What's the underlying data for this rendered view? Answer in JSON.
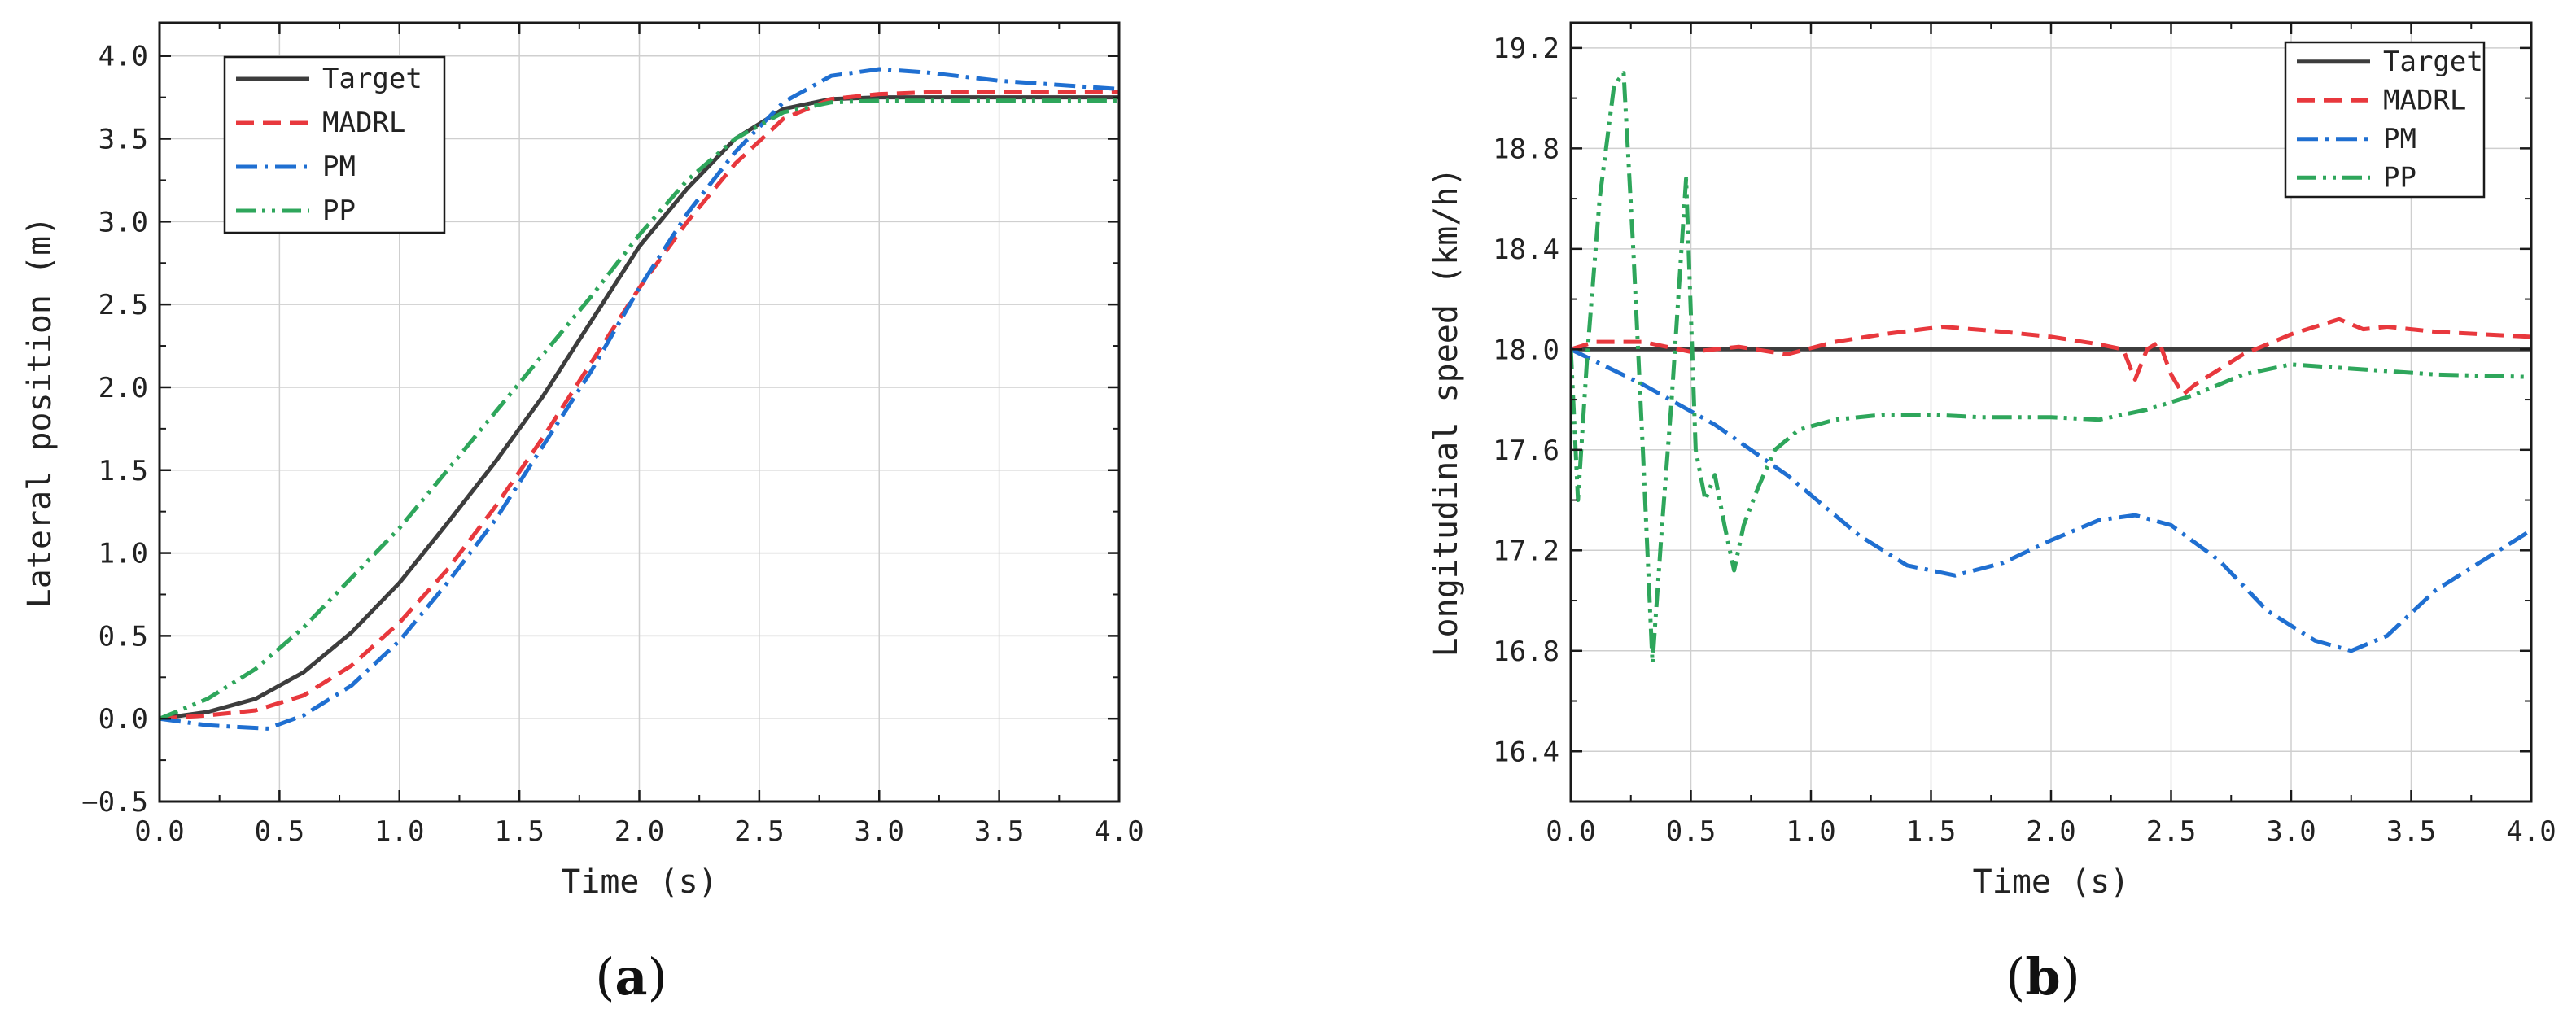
{
  "chart_data": [
    {
      "type": "line",
      "panel_label": "(a)",
      "panel_letter": "a",
      "xlabel": "Time (s)",
      "ylabel": "Lateral position (m)",
      "xlim": [
        0,
        4
      ],
      "ylim": [
        -0.5,
        4.2
      ],
      "xticks": [
        0.0,
        0.5,
        1.0,
        1.5,
        2.0,
        2.5,
        3.0,
        3.5,
        4.0
      ],
      "xtick_labels": [
        "0.0",
        "0.5",
        "1.0",
        "1.5",
        "2.0",
        "2.5",
        "3.0",
        "3.5",
        "4.0"
      ],
      "yticks": [
        -0.5,
        0.0,
        0.5,
        1.0,
        1.5,
        2.0,
        2.5,
        3.0,
        3.5,
        4.0
      ],
      "ytick_labels": [
        "−0.5",
        "0.0",
        "0.5",
        "1.0",
        "1.5",
        "2.0",
        "2.5",
        "3.0",
        "3.5",
        "4.0"
      ],
      "grid": true,
      "legend_position": "top-left",
      "series": [
        {
          "name": "Target",
          "color": "#3d3d3d",
          "style": "solid",
          "x": [
            0,
            0.2,
            0.4,
            0.6,
            0.8,
            1.0,
            1.2,
            1.4,
            1.6,
            1.8,
            2.0,
            2.2,
            2.4,
            2.6,
            2.8,
            3.0,
            3.2,
            3.5,
            4.0
          ],
          "y": [
            0,
            0.04,
            0.12,
            0.28,
            0.52,
            0.82,
            1.18,
            1.55,
            1.95,
            2.4,
            2.85,
            3.2,
            3.5,
            3.68,
            3.74,
            3.75,
            3.75,
            3.75,
            3.75
          ]
        },
        {
          "name": "MADRL",
          "color": "#e8383d",
          "style": "dashed",
          "x": [
            0,
            0.2,
            0.4,
            0.6,
            0.8,
            1.0,
            1.2,
            1.4,
            1.6,
            1.8,
            2.0,
            2.2,
            2.4,
            2.6,
            2.8,
            3.0,
            3.2,
            3.5,
            4.0
          ],
          "y": [
            0,
            0.02,
            0.05,
            0.14,
            0.32,
            0.58,
            0.9,
            1.28,
            1.7,
            2.15,
            2.6,
            3.0,
            3.35,
            3.62,
            3.74,
            3.77,
            3.78,
            3.78,
            3.78
          ]
        },
        {
          "name": "PM",
          "color": "#1f6fd1",
          "style": "dashdot",
          "x": [
            0,
            0.2,
            0.45,
            0.6,
            0.8,
            1.0,
            1.2,
            1.4,
            1.6,
            1.8,
            2.0,
            2.2,
            2.4,
            2.6,
            2.8,
            3.0,
            3.2,
            3.5,
            4.0
          ],
          "y": [
            0,
            -0.04,
            -0.06,
            0.02,
            0.2,
            0.47,
            0.82,
            1.2,
            1.65,
            2.1,
            2.6,
            3.05,
            3.42,
            3.72,
            3.88,
            3.92,
            3.9,
            3.85,
            3.8
          ]
        },
        {
          "name": "PP",
          "color": "#2ea65b",
          "style": "dashdotdot",
          "x": [
            0,
            0.2,
            0.4,
            0.6,
            0.8,
            1.0,
            1.2,
            1.4,
            1.6,
            1.8,
            2.0,
            2.2,
            2.4,
            2.6,
            2.8,
            3.0,
            3.2,
            3.5,
            4.0
          ],
          "y": [
            0,
            0.12,
            0.3,
            0.55,
            0.85,
            1.15,
            1.5,
            1.85,
            2.2,
            2.55,
            2.92,
            3.25,
            3.5,
            3.66,
            3.72,
            3.73,
            3.73,
            3.73,
            3.73
          ]
        }
      ]
    },
    {
      "type": "line",
      "panel_label": "(b)",
      "panel_letter": "b",
      "xlabel": "Time (s)",
      "ylabel": "Longitudinal speed (km/h)",
      "xlim": [
        0,
        4
      ],
      "ylim": [
        16.2,
        19.3
      ],
      "xticks": [
        0.0,
        0.5,
        1.0,
        1.5,
        2.0,
        2.5,
        3.0,
        3.5,
        4.0
      ],
      "xtick_labels": [
        "0.0",
        "0.5",
        "1.0",
        "1.5",
        "2.0",
        "2.5",
        "3.0",
        "3.5",
        "4.0"
      ],
      "yticks": [
        16.4,
        16.8,
        17.2,
        17.6,
        18.0,
        18.4,
        18.8,
        19.2
      ],
      "ytick_labels": [
        "16.4",
        "16.8",
        "17.2",
        "17.6",
        "18.0",
        "18.4",
        "18.8",
        "19.2"
      ],
      "grid": true,
      "legend_position": "top-right",
      "series": [
        {
          "name": "Target",
          "color": "#3d3d3d",
          "style": "solid",
          "x": [
            0,
            4
          ],
          "y": [
            18.0,
            18.0
          ]
        },
        {
          "name": "MADRL",
          "color": "#e8383d",
          "style": "dashed",
          "x": [
            0,
            0.1,
            0.3,
            0.5,
            0.7,
            0.9,
            1.1,
            1.3,
            1.55,
            1.8,
            2.0,
            2.2,
            2.3,
            2.35,
            2.4,
            2.45,
            2.5,
            2.55,
            2.6,
            2.8,
            3.0,
            3.2,
            3.3,
            3.4,
            3.6,
            4.0
          ],
          "y": [
            18.0,
            18.03,
            18.03,
            17.99,
            18.01,
            17.98,
            18.03,
            18.06,
            18.09,
            18.07,
            18.05,
            18.02,
            18.0,
            17.88,
            18.0,
            18.03,
            17.9,
            17.82,
            17.86,
            17.98,
            18.06,
            18.12,
            18.08,
            18.09,
            18.07,
            18.05
          ]
        },
        {
          "name": "PM",
          "color": "#1f6fd1",
          "style": "dashdot",
          "x": [
            0,
            0.3,
            0.6,
            0.9,
            1.2,
            1.4,
            1.6,
            1.8,
            2.0,
            2.2,
            2.35,
            2.5,
            2.7,
            2.9,
            3.1,
            3.25,
            3.4,
            3.6,
            3.8,
            4.0
          ],
          "y": [
            18.0,
            17.86,
            17.7,
            17.5,
            17.26,
            17.14,
            17.1,
            17.15,
            17.24,
            17.32,
            17.34,
            17.3,
            17.16,
            16.96,
            16.84,
            16.8,
            16.86,
            17.04,
            17.16,
            17.28
          ]
        },
        {
          "name": "PP",
          "color": "#2ea65b",
          "style": "dashdotdot",
          "x": [
            0,
            0.03,
            0.07,
            0.12,
            0.18,
            0.22,
            0.26,
            0.3,
            0.34,
            0.38,
            0.42,
            0.48,
            0.52,
            0.56,
            0.6,
            0.64,
            0.68,
            0.72,
            0.78,
            0.85,
            0.95,
            1.1,
            1.3,
            1.5,
            1.7,
            2.0,
            2.2,
            2.4,
            2.6,
            2.8,
            3.0,
            3.3,
            3.6,
            4.0
          ],
          "y": [
            18.0,
            17.4,
            18.0,
            18.6,
            19.05,
            19.1,
            18.4,
            17.6,
            16.75,
            17.3,
            17.8,
            18.68,
            17.6,
            17.4,
            17.5,
            17.3,
            17.12,
            17.3,
            17.45,
            17.6,
            17.68,
            17.72,
            17.74,
            17.74,
            17.73,
            17.73,
            17.72,
            17.76,
            17.82,
            17.9,
            17.94,
            17.92,
            17.9,
            17.89
          ]
        }
      ]
    }
  ]
}
